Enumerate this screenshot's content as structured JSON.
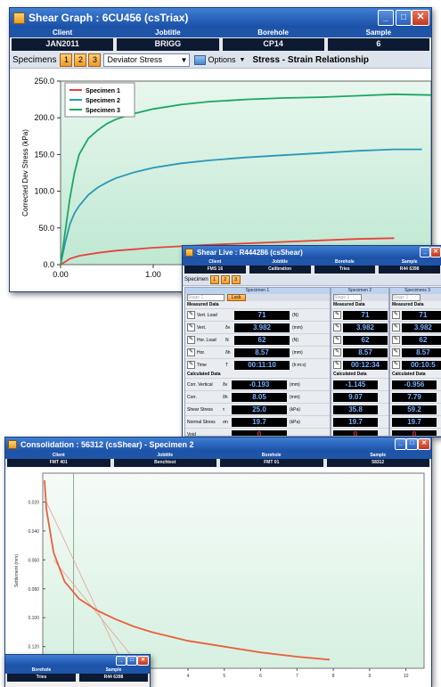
{
  "shear_graph": {
    "title": "Shear Graph : 6CU456 (csTriax)",
    "headers": [
      "Client",
      "Jobtitle",
      "Borehole",
      "Sample"
    ],
    "values": [
      "JAN2011",
      "BRIGG",
      "CP14",
      "6"
    ],
    "toolbar": {
      "specimens_label": "Specimens",
      "specimen_buttons": [
        "1",
        "2",
        "3"
      ],
      "dropdown_value": "Deviator Stress",
      "options_label": "Options",
      "chart_title": "Stress - Strain Relationship"
    },
    "chart_data": {
      "type": "line",
      "ylabel": "Corrected Dev Stress (kPa)",
      "ylim": [
        0,
        250
      ],
      "yticks": [
        "250.0",
        "200.0",
        "150.0",
        "100.0",
        "50.0",
        "0.0"
      ],
      "xticks": [
        "0.00",
        "1.00"
      ],
      "legend_placement": "top-left",
      "series": [
        {
          "name": "Specimen 1",
          "color": "#e8423a",
          "x": [
            0,
            0.05,
            0.1,
            0.2,
            0.4,
            0.6,
            0.8,
            1.0,
            1.3,
            1.6,
            2.0,
            2.4,
            2.8,
            3.2,
            3.6
          ],
          "y": [
            0,
            4,
            8,
            12,
            16,
            19,
            21,
            23,
            25,
            27,
            29,
            31,
            33,
            35,
            36
          ]
        },
        {
          "name": "Specimen 2",
          "color": "#2a98b4",
          "x": [
            0,
            0.05,
            0.1,
            0.15,
            0.2,
            0.3,
            0.4,
            0.5,
            0.6,
            0.8,
            1.0,
            1.3,
            1.6,
            2.0,
            2.4,
            2.8,
            3.2,
            3.6,
            3.9
          ],
          "y": [
            0,
            30,
            55,
            70,
            80,
            95,
            105,
            112,
            118,
            126,
            132,
            138,
            142,
            146,
            149,
            152,
            155,
            157,
            157
          ]
        },
        {
          "name": "Specimen 3",
          "color": "#1aa860",
          "x": [
            0,
            0.05,
            0.1,
            0.15,
            0.2,
            0.3,
            0.4,
            0.5,
            0.6,
            0.8,
            1.0,
            1.3,
            1.6,
            2.0,
            2.4,
            2.8,
            3.2,
            3.6,
            4.0
          ],
          "y": [
            0,
            45,
            90,
            125,
            150,
            172,
            183,
            192,
            198,
            206,
            212,
            218,
            222,
            225,
            227,
            228,
            230,
            232,
            231
          ]
        }
      ],
      "xlim": [
        0,
        4.0
      ]
    }
  },
  "shear_live": {
    "title": "Shear Live : R444286 (csShear)",
    "headers": [
      "Client",
      "Jobtitle",
      "Borehole",
      "Sample"
    ],
    "values": [
      "FMS 16",
      "Calibration",
      "Tries",
      "R44 6398"
    ],
    "specimens_label": "Specimen",
    "specimen_buttons": [
      "1",
      "2",
      "3"
    ],
    "panels": [
      "Specimen 1",
      "Specimen 2",
      "Specimens 3"
    ],
    "stage_label": "Stage 1",
    "lock_label": "Lock",
    "measured_label": "Measured Data",
    "calculated_label": "Calculated Data",
    "measured_rows": [
      {
        "label": "Vert. Load",
        "sym": "",
        "v1": "71",
        "unit": "(N)",
        "v2": "71",
        "v3": "71"
      },
      {
        "label": "Vert.",
        "sym": "δv",
        "v1": "3.982",
        "unit": "(mm)",
        "v2": "3.982",
        "v3": "3.982"
      },
      {
        "label": "Hor. Load",
        "sym": "N",
        "v1": "62",
        "unit": "(N)",
        "v2": "62",
        "v3": "62"
      },
      {
        "label": "Hor.",
        "sym": "δh",
        "v1": "8.57",
        "unit": "(mm)",
        "v2": "8.57",
        "v3": "8.57"
      },
      {
        "label": "Time",
        "sym": "T",
        "v1": "00:11:10",
        "unit": "(h:m:s)",
        "v2": "00:12:34",
        "v3": "00:10:5"
      }
    ],
    "calculated_rows": [
      {
        "label": "Corr. Vertical",
        "sym": "δv",
        "v1": "-0.193",
        "unit": "(mm)",
        "v2": "-1.145",
        "v3": "-0.956"
      },
      {
        "label": "Corr.",
        "sym": "δh",
        "v1": "8.05",
        "unit": "(mm)",
        "v2": "9.07",
        "v3": "7.79"
      },
      {
        "label": "Shear Stress",
        "sym": "τ",
        "v1": "25.0",
        "unit": "(kPa)",
        "v2": "35.8",
        "v3": "59.2"
      },
      {
        "label": "Normal Stress",
        "sym": "σn",
        "v1": "19.7",
        "unit": "(kPa)",
        "v2": "19.7",
        "v3": "19.7"
      },
      {
        "label": "Void",
        "sym": "",
        "v1": "0",
        "unit": "",
        "v2": "0",
        "v3": "0"
      }
    ]
  },
  "consolidation": {
    "title": "Consolidation : 56312 (csShear) - Specimen 2",
    "headers": [
      "Client",
      "Jobtitle",
      "Borehole",
      "Sample"
    ],
    "values": [
      "FMT 401",
      "Benchtest",
      "FMT 01",
      "58312"
    ],
    "chart_data": {
      "type": "line",
      "ylabel": "Settlement (mm)",
      "yticks": [
        "0.020",
        "0.040",
        "0.060",
        "0.080",
        "0.100",
        "0.120"
      ],
      "xticks": [
        "4",
        "5",
        "6",
        "7",
        "8",
        "9",
        "10"
      ],
      "ylim": [
        0,
        0.135
      ],
      "xlim": [
        0,
        10.5
      ],
      "series": [
        {
          "name": "",
          "color": "#e8603c",
          "x": [
            0.05,
            0.1,
            0.3,
            0.6,
            1.0,
            1.5,
            2.0,
            2.5,
            3.0,
            4.0,
            5.0,
            6.0,
            7.0,
            7.9
          ],
          "y": [
            0.005,
            0.025,
            0.055,
            0.075,
            0.087,
            0.095,
            0.101,
            0.106,
            0.11,
            0.116,
            0.12,
            0.124,
            0.127,
            0.129
          ]
        }
      ]
    }
  },
  "mini_window": {
    "headers": [
      "Borehole",
      "Sample"
    ],
    "values": [
      "Tries",
      "R44 6398"
    ]
  }
}
